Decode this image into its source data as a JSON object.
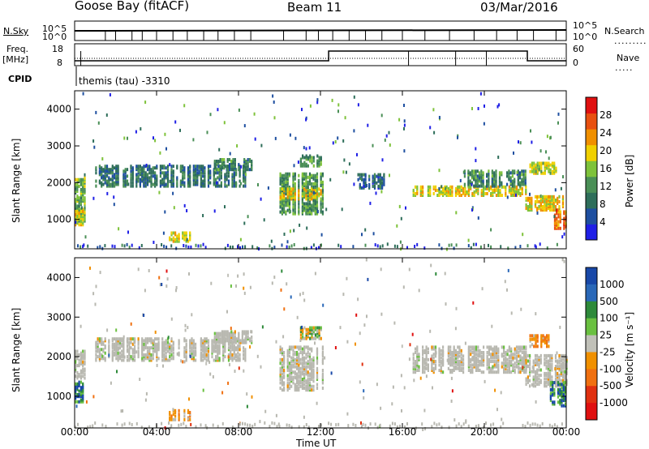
{
  "header": {
    "station": "Goose Bay (fitACF)",
    "beam": "Beam 11",
    "date": "03/Mar/2016"
  },
  "labels": {
    "nsky": "N.Sky",
    "nsearch": "N.Search",
    "freq": "Freq.",
    "mhz": "[MHz]",
    "nave": "Nave",
    "cpid": "CPID",
    "cpid_value": "themis (tau) -3310",
    "ylabel": "Slant Range [km]",
    "xlabel": "Time UT",
    "power_label": "Power [dB]",
    "velocity_label": "Velocity  [m s⁻¹]"
  },
  "noise_axis": {
    "left_ticks": [
      "10^5",
      "10^0"
    ],
    "right_ticks": [
      "10^5",
      "10^0"
    ]
  },
  "freq_axis": {
    "left_ticks": [
      "18",
      "8"
    ],
    "right_ticks": [
      "60",
      "0"
    ]
  },
  "colors": {
    "power": [
      "#1f1fe6",
      "#1e4fa0",
      "#2e6e5a",
      "#4a8f56",
      "#7ec23a",
      "#f0d000",
      "#f09000",
      "#e85010",
      "#e01010"
    ],
    "velocity": [
      "#1848a8",
      "#2a68b8",
      "#2e8a3a",
      "#6ac040",
      "#c0c0b8",
      "#f09000",
      "#f07010",
      "#e03010",
      "#e01010"
    ],
    "ground": "#b8b8b0"
  },
  "chart_data": [
    {
      "type": "heatmap",
      "title": "Power",
      "xlabel": "Time UT",
      "ylabel": "Slant Range [km]",
      "x_ticks": [
        "00:00",
        "04:00",
        "08:00",
        "12:00",
        "16:00",
        "20:00",
        "00:00"
      ],
      "y_ticks": [
        1000,
        2000,
        3000,
        4000
      ],
      "xlim": [
        0,
        24
      ],
      "ylim": [
        200,
        4500
      ],
      "colorbar": {
        "label": "Power [dB]",
        "ticks": [
          4,
          8,
          12,
          16,
          20,
          24,
          28
        ],
        "range": [
          0,
          32
        ]
      },
      "regions": [
        {
          "t0": 1.0,
          "t1": 8.5,
          "r0": 1950,
          "r1": 2500,
          "level": 10
        },
        {
          "t0": 6.8,
          "t1": 8.6,
          "r0": 2400,
          "r1": 2700,
          "level": 12
        },
        {
          "t0": 0.0,
          "t1": 0.5,
          "r0": 1000,
          "r1": 2200,
          "level": 16
        },
        {
          "t0": 0.0,
          "t1": 0.4,
          "r0": 900,
          "r1": 1300,
          "level": 22
        },
        {
          "t0": 4.6,
          "t1": 5.6,
          "r0": 450,
          "r1": 700,
          "level": 21
        },
        {
          "t0": 10.0,
          "t1": 12.1,
          "r0": 1200,
          "r1": 2300,
          "level": 14
        },
        {
          "t0": 10.0,
          "t1": 12.0,
          "r0": 1600,
          "r1": 1900,
          "level": 22
        },
        {
          "t0": 11.0,
          "t1": 12.0,
          "r0": 2500,
          "r1": 2800,
          "level": 14
        },
        {
          "t0": 13.8,
          "t1": 15.2,
          "r0": 1900,
          "r1": 2300,
          "level": 8
        },
        {
          "t0": 16.5,
          "t1": 22.0,
          "r0": 1700,
          "r1": 1950,
          "level": 21
        },
        {
          "t0": 19.0,
          "t1": 22.0,
          "r0": 1950,
          "r1": 2400,
          "level": 12
        },
        {
          "t0": 22.0,
          "t1": 24.0,
          "r0": 1300,
          "r1": 1700,
          "level": 23
        },
        {
          "t0": 22.2,
          "t1": 23.5,
          "r0": 2300,
          "r1": 2600,
          "level": 20
        },
        {
          "t0": 23.4,
          "t1": 24.0,
          "r0": 800,
          "r1": 1300,
          "level": 28
        }
      ]
    },
    {
      "type": "heatmap",
      "title": "Velocity",
      "xlabel": "Time UT",
      "ylabel": "Slant Range [km]",
      "x_ticks": [
        "00:00",
        "04:00",
        "08:00",
        "12:00",
        "16:00",
        "20:00",
        "00:00"
      ],
      "y_ticks": [
        1000,
        2000,
        3000,
        4000
      ],
      "xlim": [
        0,
        24
      ],
      "ylim": [
        200,
        4500
      ],
      "colorbar": {
        "label": "Velocity [m s-1]",
        "ticks": [
          1000,
          500,
          100,
          25,
          -25,
          -100,
          -500,
          -1000
        ]
      },
      "regions": [
        {
          "t0": 1.0,
          "t1": 8.5,
          "r0": 1950,
          "r1": 2500,
          "class": "ground"
        },
        {
          "t0": 6.8,
          "t1": 8.6,
          "r0": 2400,
          "r1": 2700,
          "class": "ground"
        },
        {
          "t0": 0.0,
          "t1": 0.5,
          "r0": 1500,
          "r1": 2200,
          "class": "ground"
        },
        {
          "t0": 0.0,
          "t1": 0.4,
          "r0": 900,
          "r1": 1400,
          "class": "positive"
        },
        {
          "t0": 4.6,
          "t1": 5.6,
          "r0": 450,
          "r1": 700,
          "class": "negative"
        },
        {
          "t0": 10.0,
          "t1": 12.1,
          "r0": 1200,
          "r1": 2300,
          "class": "ground"
        },
        {
          "t0": 11.0,
          "t1": 12.0,
          "r0": 2500,
          "r1": 2800,
          "class": "mixed"
        },
        {
          "t0": 16.5,
          "t1": 22.0,
          "r0": 1650,
          "r1": 2300,
          "class": "ground"
        },
        {
          "t0": 22.0,
          "t1": 24.0,
          "r0": 1300,
          "r1": 2100,
          "class": "ground"
        },
        {
          "t0": 22.2,
          "t1": 23.2,
          "r0": 2300,
          "r1": 2600,
          "class": "negative"
        },
        {
          "t0": 23.2,
          "t1": 24.0,
          "r0": 800,
          "r1": 1400,
          "class": "positive"
        }
      ]
    }
  ]
}
